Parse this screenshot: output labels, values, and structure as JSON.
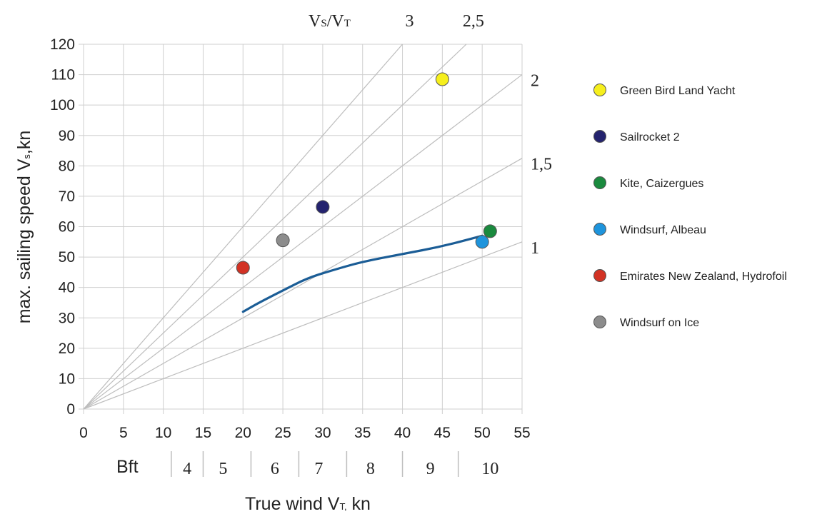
{
  "chart_data": {
    "type": "scatter",
    "xlabel_main": "True wind V",
    "xlabel_sub": "T,",
    "xlabel_unit": " kn",
    "ylabel_main": "max. sailing speed V",
    "ylabel_sub": "s",
    "ylabel_unit": ",kn",
    "xlim": [
      0,
      55
    ],
    "ylim": [
      0,
      120
    ],
    "xticks": [
      "0",
      "5",
      "10",
      "15",
      "20",
      "25",
      "30",
      "35",
      "40",
      "45",
      "50",
      "55"
    ],
    "yticks": [
      "0",
      "10",
      "20",
      "30",
      "40",
      "50",
      "60",
      "70",
      "80",
      "90",
      "100",
      "110",
      "120"
    ],
    "grid": true,
    "ratio_title": {
      "v1": "V",
      "s1": "S",
      "slash": "/V",
      "s2": "T"
    },
    "ratio_lines": [
      {
        "ratio": 3,
        "label": "3"
      },
      {
        "ratio": 2.5,
        "label": "2,5"
      },
      {
        "ratio": 2,
        "label": "2"
      },
      {
        "ratio": 1.5,
        "label": "1,5"
      },
      {
        "ratio": 1,
        "label": "1"
      }
    ],
    "bft": {
      "label": "Bft",
      "separators": [
        11,
        15,
        21,
        27,
        33,
        40,
        47
      ],
      "numbers": [
        {
          "label": "4",
          "x": 13
        },
        {
          "label": "5",
          "x": 17.5
        },
        {
          "label": "6",
          "x": 24
        },
        {
          "label": "7",
          "x": 29.5
        },
        {
          "label": "8",
          "x": 36
        },
        {
          "label": "9",
          "x": 43.5
        },
        {
          "label": "10",
          "x": 51
        }
      ]
    },
    "curve": {
      "color": "#1b5d96",
      "points": [
        [
          20,
          32
        ],
        [
          22,
          35
        ],
        [
          25,
          39
        ],
        [
          28,
          43
        ],
        [
          31,
          45.5
        ],
        [
          35,
          48.5
        ],
        [
          40,
          51
        ],
        [
          45,
          53.5
        ],
        [
          50,
          57
        ]
      ]
    },
    "series": [
      {
        "name": "Green Bird Land Yacht",
        "color": "#f6ef1d",
        "x": 45,
        "y": 108.5
      },
      {
        "name": "Sailrocket 2",
        "color": "#24236e",
        "x": 30,
        "y": 66.5
      },
      {
        "name": "Kite, Caizergues",
        "color": "#1a8a3e",
        "x": 51,
        "y": 58.5
      },
      {
        "name": "Windsurf, Albeau",
        "color": "#1e94dc",
        "x": 50,
        "y": 55
      },
      {
        "name": "Emirates New Zealand, Hydrofoil",
        "color": "#d23224",
        "x": 20,
        "y": 46.5
      },
      {
        "name": "Windsurf on Ice",
        "color": "#8c8c8c",
        "x": 25,
        "y": 55.5
      }
    ]
  }
}
